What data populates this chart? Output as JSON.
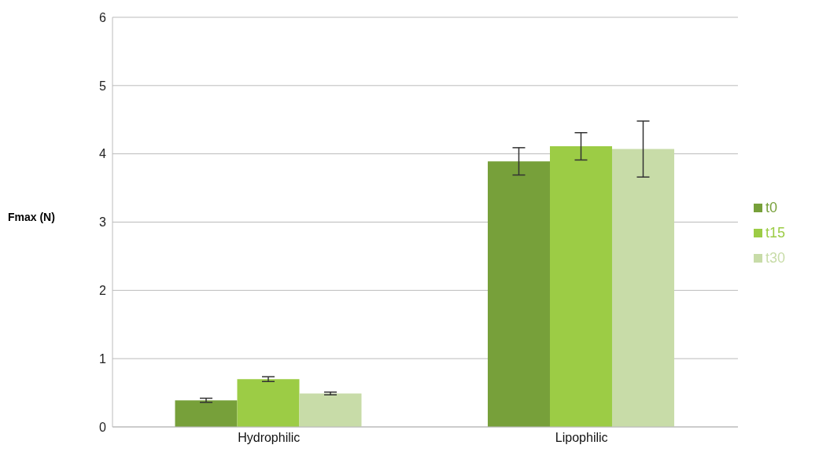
{
  "chart_data": {
    "type": "bar",
    "ylabel": "Fmax (N)",
    "categories": [
      "Hydrophilic",
      "Lipophilic"
    ],
    "series": [
      {
        "name": "t0",
        "color": "#77a03a",
        "values": [
          0.39,
          3.89
        ],
        "errors": [
          0.03,
          0.2
        ]
      },
      {
        "name": "t15",
        "color": "#9ccc45",
        "values": [
          0.7,
          4.11
        ],
        "errors": [
          0.035,
          0.2
        ]
      },
      {
        "name": "t30",
        "color": "#c8dca8",
        "values": [
          0.49,
          4.07
        ],
        "errors": [
          0.02,
          0.41
        ]
      }
    ],
    "ylim": [
      0,
      6
    ],
    "yticks": [
      0,
      1,
      2,
      3,
      4,
      5,
      6
    ],
    "grid": "y",
    "legend": "right"
  }
}
